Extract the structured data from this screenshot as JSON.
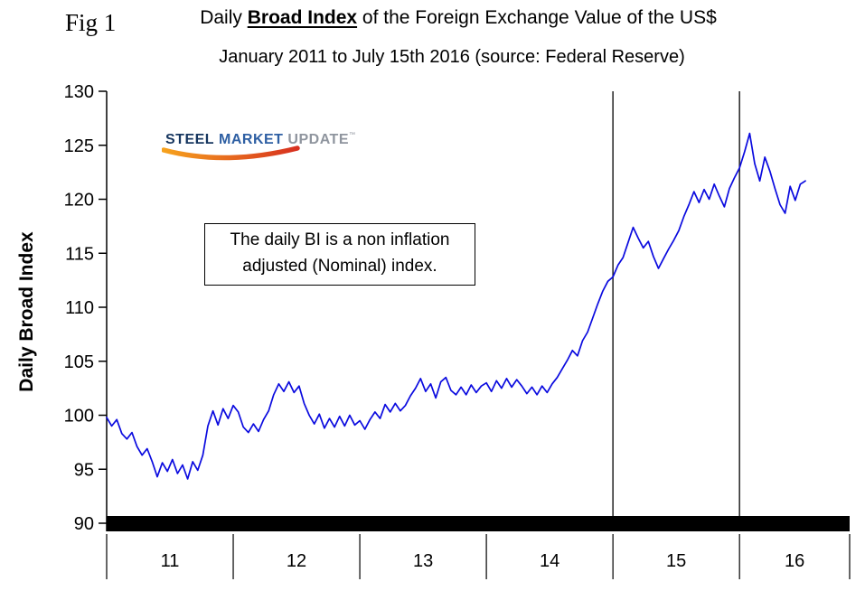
{
  "figure": {
    "fig_label": "Fig 1"
  },
  "title": {
    "prefix": "Daily ",
    "emphasis": "Broad Index",
    "suffix": " of the Foreign Exchange Value of the US$",
    "line2": "January 2011 to July 15th 2016 (source: Federal Reserve)"
  },
  "y_axis_title": "Daily Broad Index",
  "logo": {
    "word1": "STEEL",
    "word2": "MARKET",
    "word3": "UPDATE",
    "trademark": "™",
    "swoosh_color_start": "#f6a21d",
    "swoosh_color_end": "#d7301f"
  },
  "annotation": {
    "line1": "The daily BI is a non inflation",
    "line2": "adjusted (Nominal) index."
  },
  "chart_data": {
    "type": "line",
    "title": "Daily Broad Index of the Foreign Exchange Value of the US$",
    "subtitle": "January 2011 to July 15th 2016 (source: Federal Reserve)",
    "xlabel": "",
    "ylabel": "Daily Broad Index",
    "ylim": [
      90,
      130
    ],
    "xlim": [
      2011.0,
      2016.87
    ],
    "grid": false,
    "legend": "none",
    "yticks": [
      90,
      95,
      100,
      105,
      110,
      115,
      120,
      125,
      130
    ],
    "x_tick_labels": [
      "11",
      "12",
      "13",
      "14",
      "15",
      "16"
    ],
    "x_year_boundaries": [
      2011.0,
      2012.0,
      2013.0,
      2014.0,
      2015.0,
      2016.0,
      2016.87
    ],
    "vertical_lines_x": [
      2015.0,
      2016.0
    ],
    "line_color": "#0a0adf",
    "series": [
      {
        "name": "Daily Broad Index",
        "x_start": 2011.0,
        "x_step": 0.04,
        "values": [
          99.8,
          99.0,
          99.6,
          98.3,
          97.8,
          98.4,
          97.1,
          96.3,
          96.9,
          95.7,
          94.3,
          95.6,
          94.8,
          95.9,
          94.6,
          95.4,
          94.1,
          95.7,
          94.9,
          96.3,
          99.0,
          100.4,
          99.1,
          100.6,
          99.7,
          100.9,
          100.3,
          98.9,
          98.4,
          99.2,
          98.5,
          99.6,
          100.4,
          101.9,
          102.9,
          102.2,
          103.1,
          102.1,
          102.7,
          101.1,
          100.0,
          99.2,
          100.1,
          98.8,
          99.7,
          98.9,
          99.9,
          99.0,
          100.0,
          99.1,
          99.5,
          98.7,
          99.6,
          100.3,
          99.7,
          101.0,
          100.3,
          101.1,
          100.4,
          100.9,
          101.8,
          102.5,
          103.4,
          102.2,
          102.9,
          101.6,
          103.1,
          103.5,
          102.3,
          101.9,
          102.6,
          101.9,
          102.8,
          102.1,
          102.7,
          103.0,
          102.2,
          103.2,
          102.5,
          103.4,
          102.6,
          103.3,
          102.7,
          102.0,
          102.6,
          101.9,
          102.7,
          102.1,
          102.9,
          103.5,
          104.3,
          105.1,
          106.0,
          105.5,
          106.9,
          107.7,
          109.0,
          110.3,
          111.5,
          112.4,
          112.8,
          113.9,
          114.6,
          116.0,
          117.4,
          116.4,
          115.5,
          116.1,
          114.7,
          113.6,
          114.5,
          115.4,
          116.2,
          117.1,
          118.4,
          119.5,
          120.7,
          119.7,
          120.9,
          120.0,
          121.4,
          120.3,
          119.3,
          121.0,
          122.0,
          122.9,
          124.4,
          126.1,
          123.3,
          121.7,
          123.9,
          122.6,
          121.0,
          119.5,
          118.7,
          121.2,
          119.9,
          121.4,
          121.7
        ]
      }
    ]
  }
}
